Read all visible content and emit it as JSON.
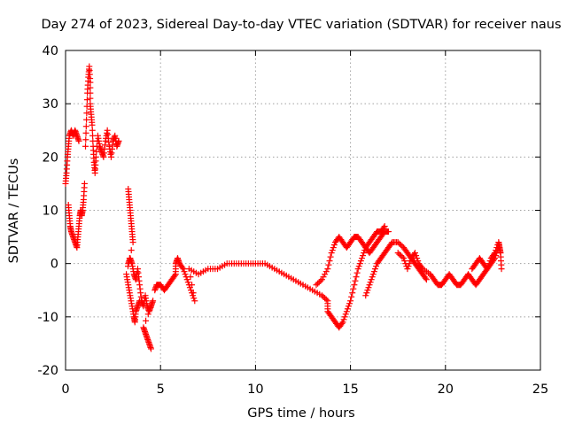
{
  "chart_data": {
    "type": "scatter",
    "title": "Day 274 of 2023, Sidereal Day-to-day VTEC variation (SDTVAR) for receiver naus",
    "xlabel": "GPS time / hours",
    "ylabel": "SDTVAR / TECUs",
    "xlim": [
      0,
      25
    ],
    "ylim": [
      -20,
      40
    ],
    "xticks": [
      0,
      5,
      10,
      15,
      20,
      25
    ],
    "yticks": [
      -20,
      -10,
      0,
      10,
      20,
      30,
      40
    ],
    "grid": true,
    "marker": "+",
    "color": "#ff0000",
    "series": [
      {
        "name": "SDTVAR",
        "points": [
          [
            0.0,
            15
          ],
          [
            0.05,
            17
          ],
          [
            0.1,
            20
          ],
          [
            0.15,
            22
          ],
          [
            0.2,
            24
          ],
          [
            0.3,
            25
          ],
          [
            0.4,
            24
          ],
          [
            0.5,
            25
          ],
          [
            0.6,
            24
          ],
          [
            0.7,
            23
          ],
          [
            0.15,
            11
          ],
          [
            0.2,
            9
          ],
          [
            0.25,
            7
          ],
          [
            0.3,
            6
          ],
          [
            0.4,
            5
          ],
          [
            0.5,
            4
          ],
          [
            0.6,
            3
          ],
          [
            0.65,
            5
          ],
          [
            0.7,
            7
          ],
          [
            0.75,
            9
          ],
          [
            0.8,
            10
          ],
          [
            0.85,
            9
          ],
          [
            0.9,
            10
          ],
          [
            0.95,
            12
          ],
          [
            1.0,
            15
          ],
          [
            1.05,
            22
          ],
          [
            1.1,
            27
          ],
          [
            1.15,
            32
          ],
          [
            1.2,
            35
          ],
          [
            1.25,
            37
          ],
          [
            1.3,
            34
          ],
          [
            1.3,
            30
          ],
          [
            1.35,
            28
          ],
          [
            1.4,
            26
          ],
          [
            1.45,
            22
          ],
          [
            1.5,
            19
          ],
          [
            1.55,
            17
          ],
          [
            1.6,
            20
          ],
          [
            1.7,
            24
          ],
          [
            1.8,
            22
          ],
          [
            1.9,
            21
          ],
          [
            2.0,
            20
          ],
          [
            2.1,
            23
          ],
          [
            2.2,
            25
          ],
          [
            2.3,
            22
          ],
          [
            2.4,
            20
          ],
          [
            2.5,
            23
          ],
          [
            2.6,
            24
          ],
          [
            2.7,
            22
          ],
          [
            2.8,
            23
          ],
          [
            3.3,
            14
          ],
          [
            3.35,
            12
          ],
          [
            3.4,
            10
          ],
          [
            3.45,
            8
          ],
          [
            3.5,
            6
          ],
          [
            3.55,
            4
          ],
          [
            3.2,
            -2
          ],
          [
            3.3,
            -4
          ],
          [
            3.4,
            -6
          ],
          [
            3.5,
            -8
          ],
          [
            3.6,
            -10
          ],
          [
            3.65,
            -11
          ],
          [
            3.7,
            -9
          ],
          [
            3.8,
            -8
          ],
          [
            3.9,
            -7
          ],
          [
            3.3,
            0
          ],
          [
            3.4,
            1
          ],
          [
            3.5,
            0
          ],
          [
            3.6,
            -2
          ],
          [
            3.7,
            -3
          ],
          [
            3.8,
            -1
          ],
          [
            3.9,
            -4
          ],
          [
            4.0,
            -7
          ],
          [
            4.1,
            -8
          ],
          [
            4.2,
            -6
          ],
          [
            4.3,
            -8
          ],
          [
            4.4,
            -9
          ],
          [
            4.5,
            -8
          ],
          [
            4.6,
            -7
          ],
          [
            4.1,
            -12
          ],
          [
            4.2,
            -13
          ],
          [
            4.3,
            -14
          ],
          [
            4.4,
            -15
          ],
          [
            4.5,
            -16
          ],
          [
            4.7,
            -5
          ],
          [
            4.8,
            -4
          ],
          [
            5.0,
            -4
          ],
          [
            5.2,
            -5
          ],
          [
            5.4,
            -4
          ],
          [
            5.6,
            -3
          ],
          [
            5.8,
            -2
          ],
          [
            5.8,
            0
          ],
          [
            5.9,
            1
          ],
          [
            6.0,
            0
          ],
          [
            6.2,
            -1
          ],
          [
            6.4,
            -3
          ],
          [
            6.6,
            -5
          ],
          [
            6.8,
            -7
          ],
          [
            6.5,
            -1
          ],
          [
            7.0,
            -2
          ],
          [
            7.5,
            -1
          ],
          [
            8.0,
            -1
          ],
          [
            8.5,
            0
          ],
          [
            9.0,
            0
          ],
          [
            9.5,
            0
          ],
          [
            10.0,
            0
          ],
          [
            10.5,
            0
          ],
          [
            11.0,
            -1
          ],
          [
            11.5,
            -2
          ],
          [
            12.0,
            -3
          ],
          [
            12.5,
            -4
          ],
          [
            13.0,
            -5
          ],
          [
            13.5,
            -6
          ],
          [
            13.8,
            -7
          ],
          [
            13.8,
            -9
          ],
          [
            14.0,
            -10
          ],
          [
            14.2,
            -11
          ],
          [
            14.4,
            -12
          ],
          [
            14.6,
            -11
          ],
          [
            14.8,
            -9
          ],
          [
            15.0,
            -7
          ],
          [
            15.2,
            -4
          ],
          [
            15.4,
            -1
          ],
          [
            15.6,
            1
          ],
          [
            15.8,
            3
          ],
          [
            16.0,
            4
          ],
          [
            16.2,
            5
          ],
          [
            16.4,
            6
          ],
          [
            16.6,
            6
          ],
          [
            16.8,
            7
          ],
          [
            13.2,
            -4
          ],
          [
            13.5,
            -3
          ],
          [
            13.8,
            -1
          ],
          [
            14.0,
            2
          ],
          [
            14.2,
            4
          ],
          [
            14.4,
            5
          ],
          [
            14.6,
            4
          ],
          [
            14.8,
            3
          ],
          [
            15.0,
            4
          ],
          [
            15.2,
            5
          ],
          [
            15.4,
            5
          ],
          [
            15.6,
            4
          ],
          [
            15.8,
            3
          ],
          [
            16.0,
            2
          ],
          [
            16.2,
            3
          ],
          [
            16.4,
            4
          ],
          [
            16.6,
            5
          ],
          [
            16.8,
            6
          ],
          [
            17.0,
            6
          ],
          [
            15.8,
            -6
          ],
          [
            16.0,
            -4
          ],
          [
            16.2,
            -2
          ],
          [
            16.4,
            0
          ],
          [
            16.6,
            1
          ],
          [
            16.8,
            2
          ],
          [
            17.0,
            3
          ],
          [
            17.2,
            4
          ],
          [
            17.5,
            4
          ],
          [
            17.8,
            3
          ],
          [
            18.0,
            2
          ],
          [
            18.2,
            1
          ],
          [
            18.4,
            0
          ],
          [
            18.6,
            -1
          ],
          [
            18.8,
            -2
          ],
          [
            19.0,
            -3
          ],
          [
            17.5,
            2
          ],
          [
            17.8,
            1
          ],
          [
            18.0,
            -1
          ],
          [
            18.2,
            1
          ],
          [
            18.4,
            2
          ],
          [
            18.6,
            0
          ],
          [
            18.8,
            -1
          ],
          [
            19.2,
            -2
          ],
          [
            19.4,
            -3
          ],
          [
            19.6,
            -4
          ],
          [
            19.8,
            -4
          ],
          [
            20.0,
            -3
          ],
          [
            20.2,
            -2
          ],
          [
            20.4,
            -3
          ],
          [
            20.6,
            -4
          ],
          [
            20.8,
            -4
          ],
          [
            21.0,
            -3
          ],
          [
            21.2,
            -2
          ],
          [
            21.4,
            -3
          ],
          [
            21.6,
            -4
          ],
          [
            21.8,
            -3
          ],
          [
            22.0,
            -2
          ],
          [
            22.2,
            -1
          ],
          [
            22.4,
            0
          ],
          [
            22.6,
            1
          ],
          [
            22.8,
            3
          ],
          [
            21.4,
            -1
          ],
          [
            21.6,
            0
          ],
          [
            21.8,
            1
          ],
          [
            22.0,
            0
          ],
          [
            22.2,
            -1
          ],
          [
            22.4,
            1
          ],
          [
            22.6,
            2
          ],
          [
            22.8,
            4
          ],
          [
            22.85,
            3
          ],
          [
            22.9,
            2
          ],
          [
            22.95,
            -1
          ]
        ]
      }
    ]
  }
}
